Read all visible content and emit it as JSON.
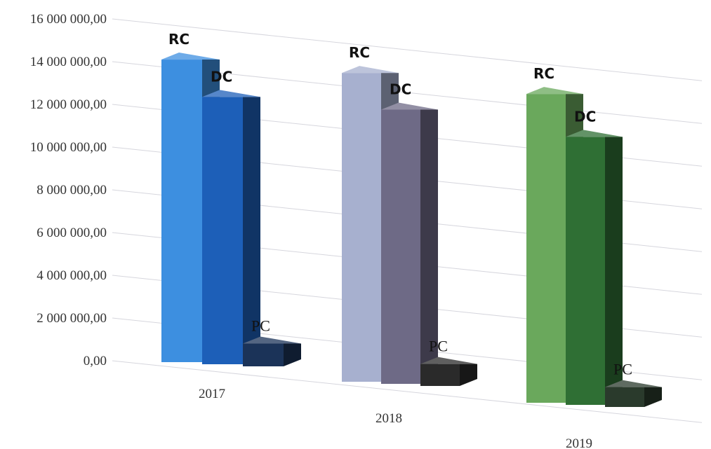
{
  "chart_data": {
    "type": "bar",
    "categories": [
      "2017",
      "2018",
      "2019"
    ],
    "series": [
      {
        "name": "RC",
        "values": [
          14600000,
          14750000,
          14750000
        ],
        "color": "#3d8fe0",
        "label_font": "sans"
      },
      {
        "name": "DC",
        "values": [
          12900000,
          13100000,
          12800000
        ],
        "color": "#1d5fb8",
        "label_font": "sans"
      },
      {
        "name": "PC",
        "values": [
          1100000,
          1050000,
          950000
        ],
        "color": "#1b2f4f",
        "label_font": "serif"
      }
    ],
    "category_colors": [
      {
        "rc": "#3d8fe0",
        "dc": "#1d5fb8",
        "pc": "#1b3358"
      },
      {
        "rc": "#a7b0cf",
        "dc": "#6e6a86",
        "pc": "#2a2a2a"
      },
      {
        "rc": "#6aa85c",
        "dc": "#2f6f34",
        "pc": "#2a3a2c"
      }
    ],
    "y_ticks": [
      "0,00",
      "2 000 000,00",
      "4 000 000,00",
      "6 000 000,00",
      "8 000 000,00",
      "10 000 000,00",
      "12 000 000,00",
      "14 000 000,00",
      "16 000 000,00"
    ],
    "ylim": [
      0,
      16000000
    ],
    "grid": true,
    "style": "3d-clustered-column",
    "title": "",
    "xlabel": "",
    "ylabel": ""
  }
}
